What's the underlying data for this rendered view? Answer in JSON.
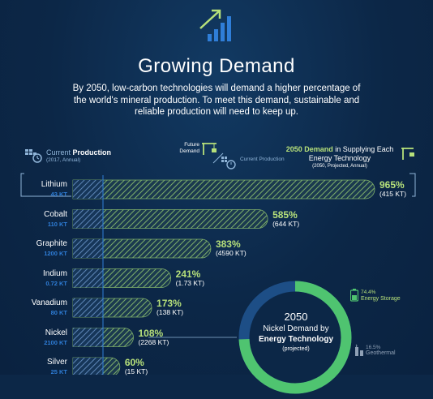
{
  "header": {
    "title": "Growing Demand",
    "intro": "By 2050, low-carbon technologies will demand a higher percentage of the world's mineral production. To meet this demand, sustainable and reliable production will need to keep up."
  },
  "legend": {
    "current_production_prefix": "Current ",
    "current_production_bold": "Production",
    "current_production_sub": "(2017, Annual)",
    "future_demand": "Future Demand",
    "current_production_small": "Current Production",
    "demand_bold": "2050 Demand",
    "demand_rest": " in Supplying Each Energy Technology",
    "demand_sub": "(2050, Projected, Annual)"
  },
  "chart_data": {
    "type": "bar",
    "categories": [
      "Lithium",
      "Cobalt",
      "Graphite",
      "Indium",
      "Vanadium",
      "Nickel",
      "Silver"
    ],
    "current_production_labels": [
      "43 KT",
      "110 KT",
      "1200 KT",
      "0.72 KT",
      "80 KT",
      "2100 KT",
      "25 KT"
    ],
    "current_production_kt": [
      43,
      110,
      1200,
      0.72,
      80,
      2100,
      25
    ],
    "demand_pct_labels": [
      "965%",
      "585%",
      "383%",
      "241%",
      "173%",
      "108%",
      "60%"
    ],
    "demand_pct": [
      965,
      585,
      383,
      241,
      173,
      108,
      60
    ],
    "demand_kt_labels": [
      "(415 KT)",
      "(644 KT)",
      "(4590 KT)",
      "(1.73 KT)",
      "(138 KT)",
      "(2268 KT)",
      "(15 KT)"
    ]
  },
  "donut": {
    "year": "2050",
    "line1": "Nickel Demand by",
    "line2": "Energy Technology",
    "sub": "(projected)",
    "energy_storage_pct": "74.4%",
    "energy_storage_label": "Energy Storage",
    "energy_storage_value": 74.4,
    "geothermal_pct": "16.5%",
    "geothermal_label": "Geothermal",
    "geothermal_value": 16.5,
    "colors": {
      "energy_storage": "#4fc470",
      "geothermal": "#6b7a8c",
      "other": "#1d4e86"
    }
  },
  "colors": {
    "accent_green": "#b6e07a",
    "accent_blue": "#2f7ed8"
  }
}
